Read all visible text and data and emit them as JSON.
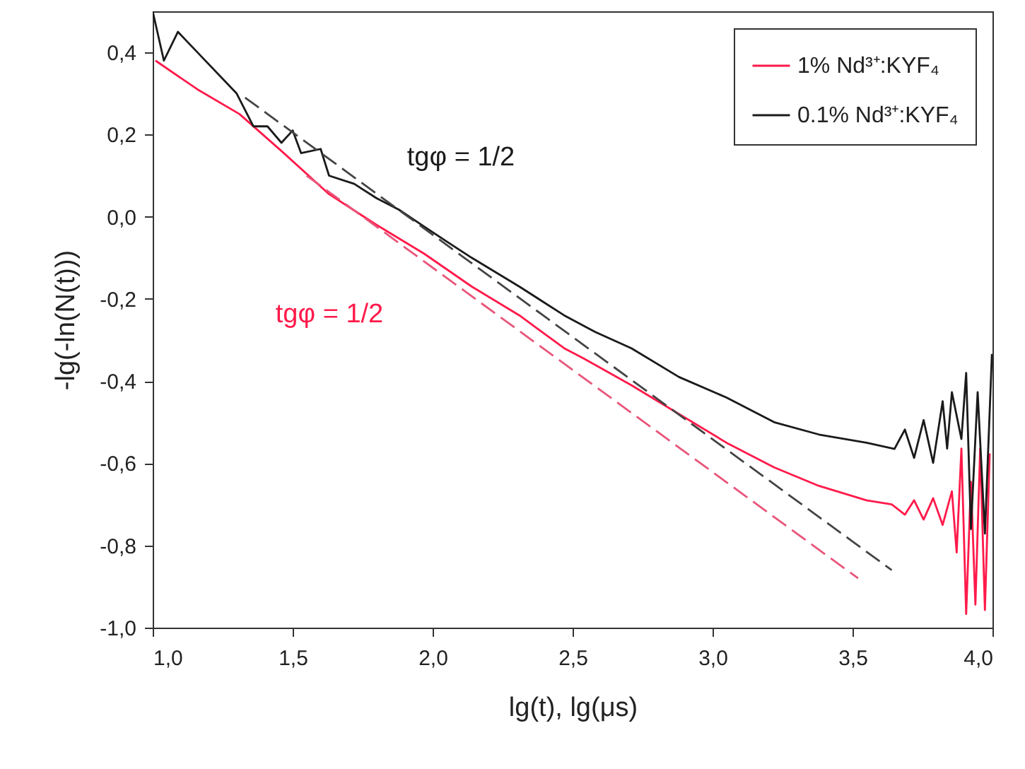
{
  "chart_data": {
    "type": "line",
    "xlabel": "lg(t), lg(μs)",
    "ylabel": "-lg(-ln(N(t)))",
    "xlim": [
      1.0,
      4.0
    ],
    "ylim": [
      -1.0,
      0.5
    ],
    "xticks": [
      {
        "value": 1.0,
        "label": "1,0"
      },
      {
        "value": 1.5,
        "label": "1,5"
      },
      {
        "value": 2.0,
        "label": "2,0"
      },
      {
        "value": 2.5,
        "label": "2,5"
      },
      {
        "value": 3.0,
        "label": "3,0"
      },
      {
        "value": 3.5,
        "label": "3,5"
      },
      {
        "value": 4.0,
        "label": "4,0"
      }
    ],
    "yticks": [
      {
        "value": -1.0,
        "label": "-1,0"
      },
      {
        "value": -0.8,
        "label": "-0,8"
      },
      {
        "value": -0.6,
        "label": "-0,6"
      },
      {
        "value": -0.4,
        "label": "-0,4"
      },
      {
        "value": -0.2,
        "label": "-0,2"
      },
      {
        "value": 0,
        "label": "0,0"
      },
      {
        "value": 0.2,
        "label": "0,2"
      },
      {
        "value": 0.4,
        "label": "0,4"
      }
    ],
    "grid": false,
    "legend": "top right",
    "marker": "none",
    "line_style": "solid",
    "annotations": [
      "tgφ = 1/2",
      "tgφ = 1/2"
    ],
    "series": [
      {
        "name": "1% Nd³⁺:KYF₄",
        "color": "#ff1a4a",
        "x": [
          1.01,
          1.16,
          1.31,
          1.46,
          1.63,
          1.8,
          1.97,
          2.14,
          2.31,
          2.47,
          2.54,
          2.71,
          2.88,
          3.05,
          3.22,
          3.38,
          3.55,
          3.64,
          3.687,
          3.72,
          3.754,
          3.788,
          3.822,
          3.855,
          3.872,
          3.889,
          3.906,
          3.923,
          3.939,
          3.956,
          3.973,
          3.99
        ],
        "values": [
          0.38,
          0.31,
          0.25,
          0.16,
          0.055,
          -0.02,
          -0.09,
          -0.17,
          -0.24,
          -0.32,
          -0.345,
          -0.41,
          -0.48,
          -0.55,
          -0.61,
          -0.655,
          -0.69,
          -0.7,
          -0.725,
          -0.69,
          -0.737,
          -0.685,
          -0.75,
          -0.668,
          -0.817,
          -0.564,
          -0.967,
          -0.645,
          -0.944,
          -0.564,
          -0.957,
          -0.576
        ]
      },
      {
        "name": "0.1% Nd³⁺:KYF₄",
        "color": "#1a1a1a",
        "x": [
          1.0,
          1.04,
          1.09,
          1.16,
          1.3,
          1.36,
          1.41,
          1.46,
          1.5,
          1.53,
          1.6,
          1.63,
          1.72,
          1.8,
          1.88,
          1.97,
          2.05,
          2.14,
          2.31,
          2.47,
          2.58,
          2.71,
          2.88,
          3.05,
          3.22,
          3.38,
          3.55,
          3.65,
          3.687,
          3.72,
          3.754,
          3.788,
          3.822,
          3.838,
          3.855,
          3.889,
          3.906,
          3.923,
          3.947,
          3.973,
          3.998
        ],
        "values": [
          0.5,
          0.38,
          0.45,
          0.4,
          0.3,
          0.22,
          0.22,
          0.18,
          0.21,
          0.155,
          0.165,
          0.1,
          0.08,
          0.045,
          0.017,
          -0.024,
          -0.06,
          -0.1,
          -0.17,
          -0.24,
          -0.28,
          -0.32,
          -0.39,
          -0.44,
          -0.5,
          -0.53,
          -0.55,
          -0.565,
          -0.518,
          -0.587,
          -0.495,
          -0.599,
          -0.449,
          -0.564,
          -0.427,
          -0.541,
          -0.38,
          -0.76,
          -0.427,
          -0.771,
          -0.334
        ]
      },
      {
        "color": "#444444",
        "line_style": "dashed",
        "x": [
          1.33,
          3.64
        ],
        "values": [
          0.29,
          -0.86
        ]
      },
      {
        "color": "#e8557a",
        "line_style": "dashed",
        "x": [
          1.55,
          3.52
        ],
        "values": [
          0.1,
          -0.88
        ]
      }
    ]
  }
}
